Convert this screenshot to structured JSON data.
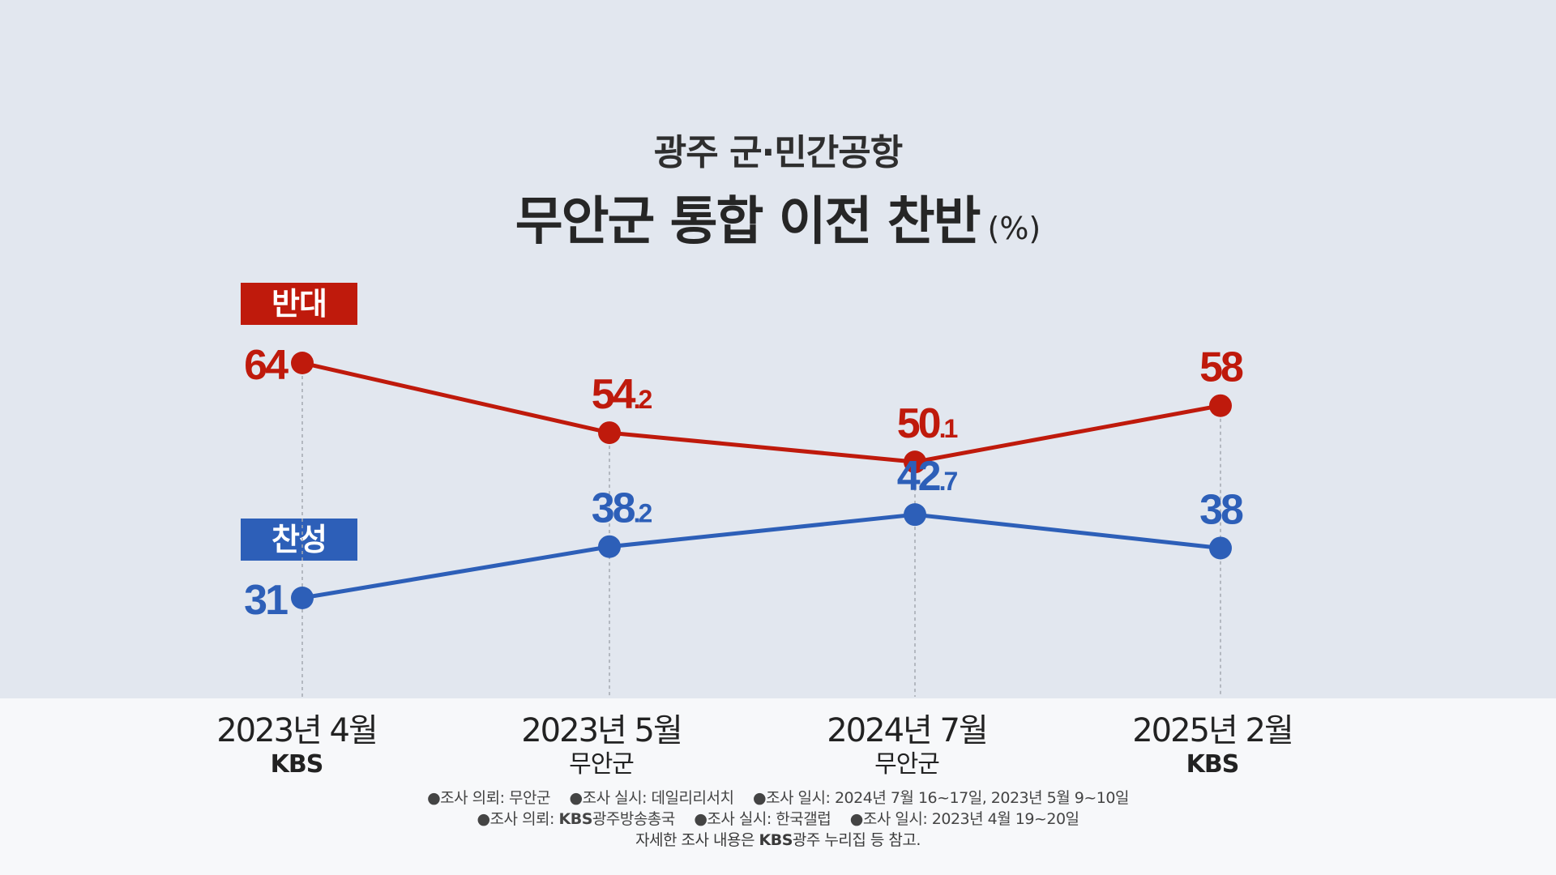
{
  "title": {
    "line1": "광주  군·민간공항",
    "line2": "무안군 통합 이전 찬반",
    "unit": "(%)"
  },
  "legend": {
    "oppose": "반대",
    "support": "찬성"
  },
  "colors": {
    "oppose": "#bf1a0c",
    "support": "#2d5fb8",
    "background_top": "#e2e7ef",
    "background_bottom": "#f7f8fa"
  },
  "x_categories": [
    {
      "date": "2023년 4월",
      "source": "KBS"
    },
    {
      "date": "2023년 5월",
      "source": "무안군"
    },
    {
      "date": "2024년 7월",
      "source": "무안군"
    },
    {
      "date": "2025년 2월",
      "source": "KBS"
    }
  ],
  "notes": {
    "line1": [
      "조사 의뢰: 무안군",
      "조사 실시: 데일리리서치",
      "조사 일시: 2024년 7월 16~17일, 2023년 5월 9~10일"
    ],
    "line2_prefix": "조사 의뢰: ",
    "line2_brand": "KBS",
    "line2_rest": "광주방송총국",
    "line2_items": [
      "조사 실시: 한국갤럽",
      "조사 일시: 2023년 4월 19~20일"
    ],
    "line3_pre": "자세한 조사 내용은 ",
    "line3_brand": "KBS",
    "line3_post": "광주 누리집 등 참고."
  },
  "chart_data": {
    "type": "line",
    "title": "광주  군·민간공항 무안군 통합 이전 찬반 (%)",
    "categories": [
      "2023년 4월",
      "2023년 5월",
      "2024년 7월",
      "2025년 2월"
    ],
    "series": [
      {
        "name": "반대",
        "values": [
          64,
          54.2,
          50.1,
          58
        ],
        "labels": [
          [
            "64",
            ""
          ],
          [
            "54",
            ".2"
          ],
          [
            "50",
            ".1"
          ],
          [
            "58",
            ""
          ]
        ]
      },
      {
        "name": "찬성",
        "values": [
          31,
          38.2,
          42.7,
          38
        ],
        "labels": [
          [
            "31",
            ""
          ],
          [
            "38",
            ".2"
          ],
          [
            "42",
            ".7"
          ],
          [
            "38",
            ""
          ]
        ]
      }
    ],
    "grid": false,
    "legend_placement": "left"
  }
}
